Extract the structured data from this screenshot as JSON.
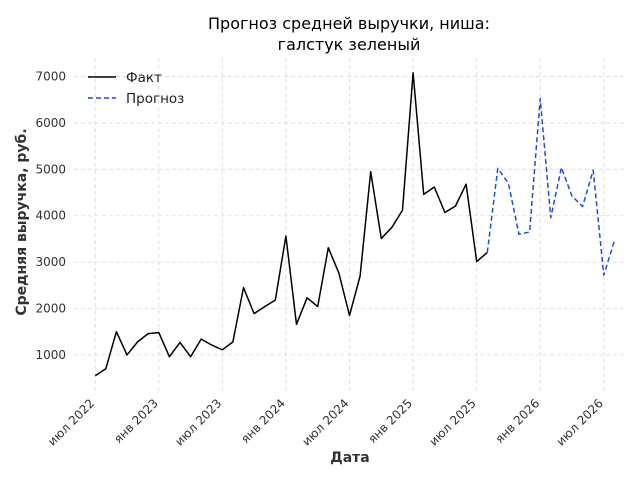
{
  "chart_data": {
    "type": "line",
    "title": [
      "Прогноз средней выручки, ниша:",
      "галстук зеленый"
    ],
    "xlabel": "Дата",
    "ylabel": "Средняя выручка, руб.",
    "ylim": [
      200,
      7400
    ],
    "yticks": [
      1000,
      2000,
      3000,
      4000,
      5000,
      6000,
      7000
    ],
    "xlim": [
      "2022-05",
      "2026-09"
    ],
    "xticks": [
      {
        "date": "2022-07",
        "label": "июл 2022"
      },
      {
        "date": "2023-01",
        "label": "янв 2023"
      },
      {
        "date": "2023-07",
        "label": "июл 2023"
      },
      {
        "date": "2024-01",
        "label": "янв 2024"
      },
      {
        "date": "2024-07",
        "label": "июл 2024"
      },
      {
        "date": "2025-01",
        "label": "янв 2025"
      },
      {
        "date": "2025-07",
        "label": "июл 2025"
      },
      {
        "date": "2026-01",
        "label": "янв 2026"
      },
      {
        "date": "2026-07",
        "label": "июл 2026"
      }
    ],
    "grid": true,
    "legend_position": "top-left",
    "series": [
      {
        "name": "Факт",
        "color": "#000000",
        "style": "solid",
        "x": [
          "2022-07",
          "2022-08",
          "2022-09",
          "2022-10",
          "2022-11",
          "2022-12",
          "2023-01",
          "2023-02",
          "2023-03",
          "2023-04",
          "2023-05",
          "2023-06",
          "2023-07",
          "2023-08",
          "2023-09",
          "2023-10",
          "2023-11",
          "2023-12",
          "2024-01",
          "2024-02",
          "2024-03",
          "2024-04",
          "2024-05",
          "2024-06",
          "2024-07",
          "2024-08",
          "2024-09",
          "2024-10",
          "2024-11",
          "2024-12",
          "2025-01",
          "2025-02",
          "2025-03",
          "2025-04",
          "2025-05",
          "2025-06",
          "2025-07",
          "2025-08"
        ],
        "y": [
          550,
          700,
          1500,
          1000,
          1280,
          1460,
          1480,
          960,
          1270,
          960,
          1340,
          1210,
          1110,
          1280,
          2450,
          1890,
          2040,
          2180,
          3560,
          1660,
          2230,
          2040,
          3310,
          2760,
          1850,
          2700,
          4950,
          3510,
          3750,
          4120,
          7080,
          4460,
          4620,
          4070,
          4210,
          4680,
          3010,
          3210
        ]
      },
      {
        "name": "Прогноз",
        "color": "#1f4fd1",
        "style": "dashed",
        "x": [
          "2025-08",
          "2025-09",
          "2025-10",
          "2025-11",
          "2025-12",
          "2026-01",
          "2026-02",
          "2026-03",
          "2026-04",
          "2026-05",
          "2026-06",
          "2026-07",
          "2026-08"
        ],
        "y": [
          3210,
          5020,
          4700,
          3600,
          3650,
          6520,
          3960,
          5040,
          4420,
          4200,
          4980,
          2720,
          3460
        ]
      }
    ]
  }
}
